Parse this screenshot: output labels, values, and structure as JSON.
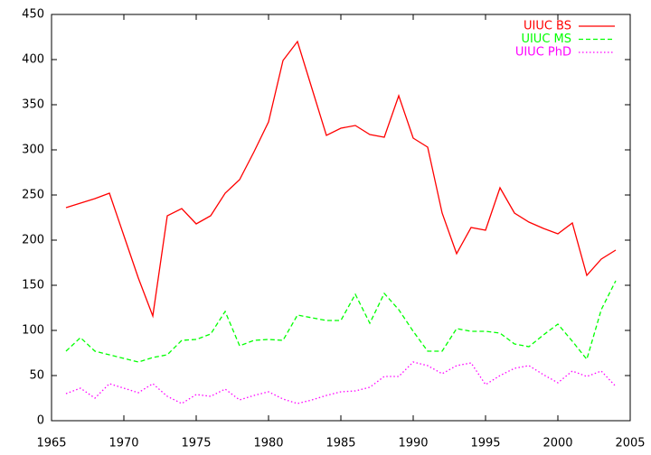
{
  "chart_data": {
    "type": "line",
    "x": [
      1966,
      1967,
      1968,
      1969,
      1970,
      1971,
      1972,
      1973,
      1974,
      1975,
      1976,
      1977,
      1978,
      1979,
      1980,
      1981,
      1982,
      1983,
      1984,
      1985,
      1986,
      1987,
      1988,
      1989,
      1990,
      1991,
      1992,
      1993,
      1994,
      1995,
      1996,
      1997,
      1998,
      1999,
      2000,
      2001,
      2002,
      2003,
      2004
    ],
    "series": [
      {
        "name": "UIUC BS",
        "color": "#ff0000",
        "values": [
          236,
          241,
          246,
          252,
          205,
          158,
          116,
          227,
          235,
          218,
          227,
          252,
          267,
          298,
          331,
          399,
          420,
          368,
          316,
          324,
          327,
          317,
          314,
          360,
          313,
          303,
          230,
          185,
          214,
          211,
          258,
          230,
          220,
          213,
          207,
          219,
          161,
          179,
          189
        ]
      },
      {
        "name": "UIUC MS",
        "color": "#00ff00",
        "values": [
          77,
          92,
          77,
          73,
          69,
          65,
          70,
          73,
          89,
          90,
          96,
          121,
          83,
          89,
          90,
          89,
          117,
          114,
          111,
          111,
          140,
          108,
          141,
          123,
          99,
          77,
          77,
          102,
          99,
          99,
          97,
          85,
          82,
          95,
          107,
          88,
          68,
          123,
          155
        ]
      },
      {
        "name": "UIUC PhD",
        "color": "#ff00ff",
        "values": [
          30,
          36,
          25,
          41,
          36,
          31,
          41,
          27,
          19,
          29,
          27,
          35,
          23,
          28,
          32,
          24,
          19,
          23,
          28,
          32,
          33,
          37,
          49,
          49,
          65,
          61,
          52,
          61,
          64,
          40,
          50,
          58,
          61,
          51,
          42,
          55,
          49,
          55,
          38
        ]
      }
    ],
    "xlim": [
      1965,
      2005
    ],
    "xticks": [
      1965,
      1970,
      1975,
      1980,
      1985,
      1990,
      1995,
      2000,
      2005
    ],
    "ylim": [
      0,
      450
    ],
    "yticks": [
      0,
      50,
      100,
      150,
      200,
      250,
      300,
      350,
      400,
      450
    ],
    "grid": false,
    "legend": "top-right"
  }
}
